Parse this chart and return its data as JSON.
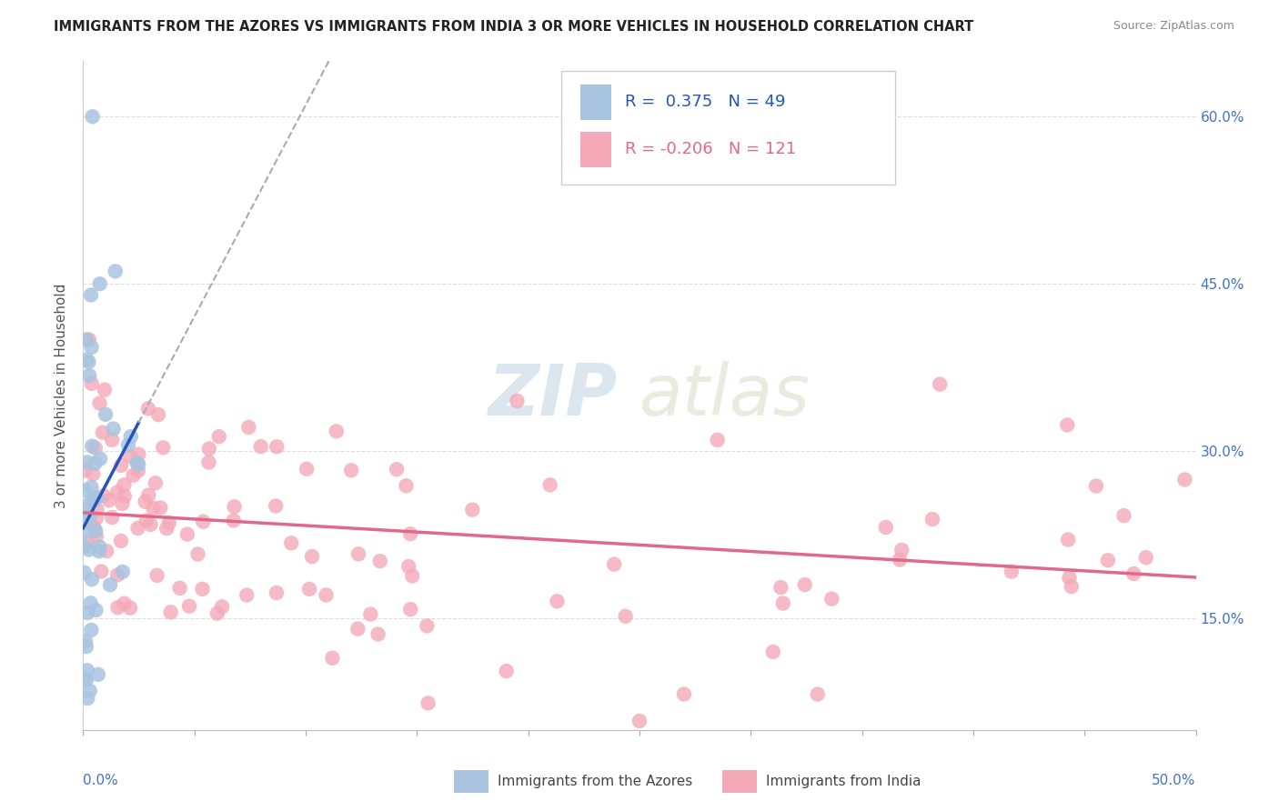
{
  "title": "IMMIGRANTS FROM THE AZORES VS IMMIGRANTS FROM INDIA 3 OR MORE VEHICLES IN HOUSEHOLD CORRELATION CHART",
  "source": "Source: ZipAtlas.com",
  "ylabel": "3 or more Vehicles in Household",
  "r_azores": 0.375,
  "n_azores": 49,
  "r_india": -0.206,
  "n_india": 121,
  "legend_azores": "Immigrants from the Azores",
  "legend_india": "Immigrants from India",
  "azores_color": "#a8c4e0",
  "india_color": "#f4a8b8",
  "azores_line_color": "#2255bb",
  "india_line_color": "#e06888",
  "watermark_zip": "ZIP",
  "watermark_atlas": "atlas",
  "xmin": 0.0,
  "xmax": 0.5,
  "ymin": 0.05,
  "ymax": 0.65,
  "yticks": [
    0.15,
    0.3,
    0.45,
    0.6
  ],
  "background_color": "#ffffff",
  "grid_color": "#dddddd",
  "title_color": "#222222",
  "source_color": "#888888",
  "axis_label_color": "#4472c4",
  "ylabel_color": "#555555"
}
